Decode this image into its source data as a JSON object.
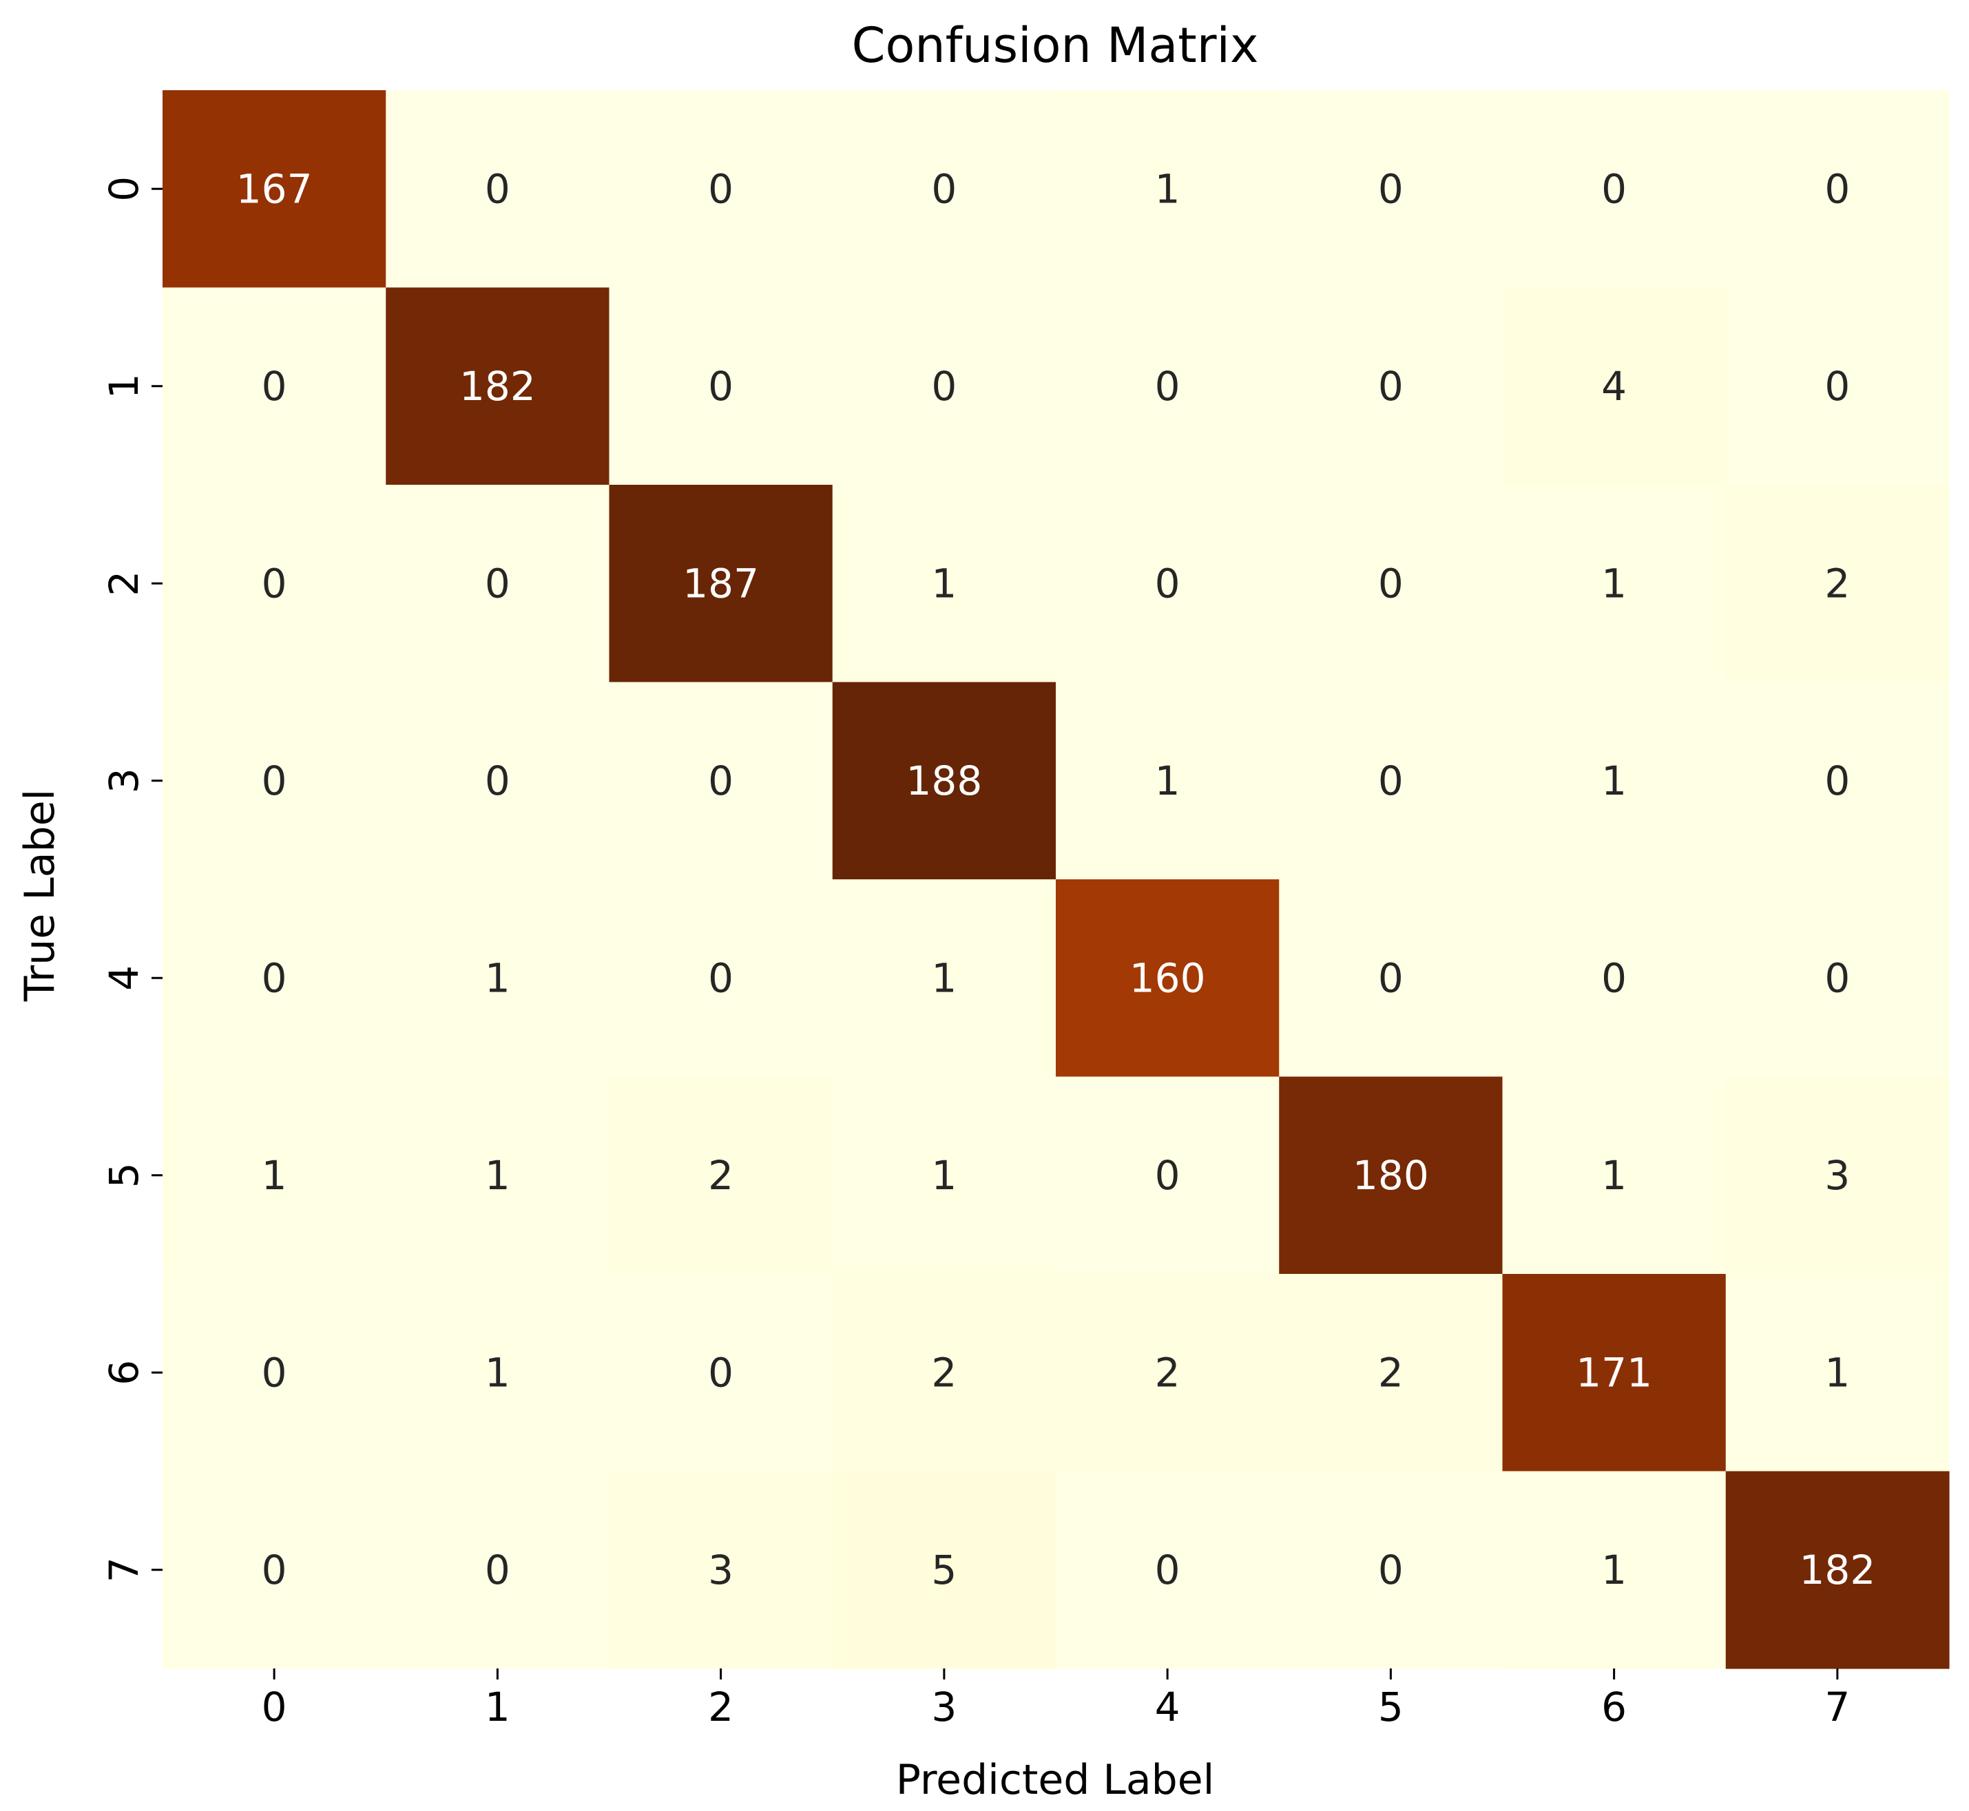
{
  "chart_data": {
    "type": "heatmap",
    "title": "Confusion Matrix",
    "xlabel": "Predicted Label",
    "ylabel": "True Label",
    "x_tick_labels": [
      "0",
      "1",
      "2",
      "3",
      "4",
      "5",
      "6",
      "7"
    ],
    "y_tick_labels": [
      "0",
      "1",
      "2",
      "3",
      "4",
      "5",
      "6",
      "7"
    ],
    "values": [
      [
        167,
        0,
        0,
        0,
        1,
        0,
        0,
        0
      ],
      [
        0,
        182,
        0,
        0,
        0,
        0,
        4,
        0
      ],
      [
        0,
        0,
        187,
        1,
        0,
        0,
        1,
        2
      ],
      [
        0,
        0,
        0,
        188,
        1,
        0,
        1,
        0
      ],
      [
        0,
        1,
        0,
        1,
        160,
        0,
        0,
        0
      ],
      [
        1,
        1,
        2,
        1,
        0,
        180,
        1,
        3
      ],
      [
        0,
        1,
        0,
        2,
        2,
        2,
        171,
        1
      ],
      [
        0,
        0,
        3,
        5,
        0,
        0,
        1,
        182
      ]
    ],
    "value_range": [
      0,
      188
    ],
    "colormap": "YlOrBr",
    "colorbar": false,
    "annotations": true,
    "grid": false
  }
}
